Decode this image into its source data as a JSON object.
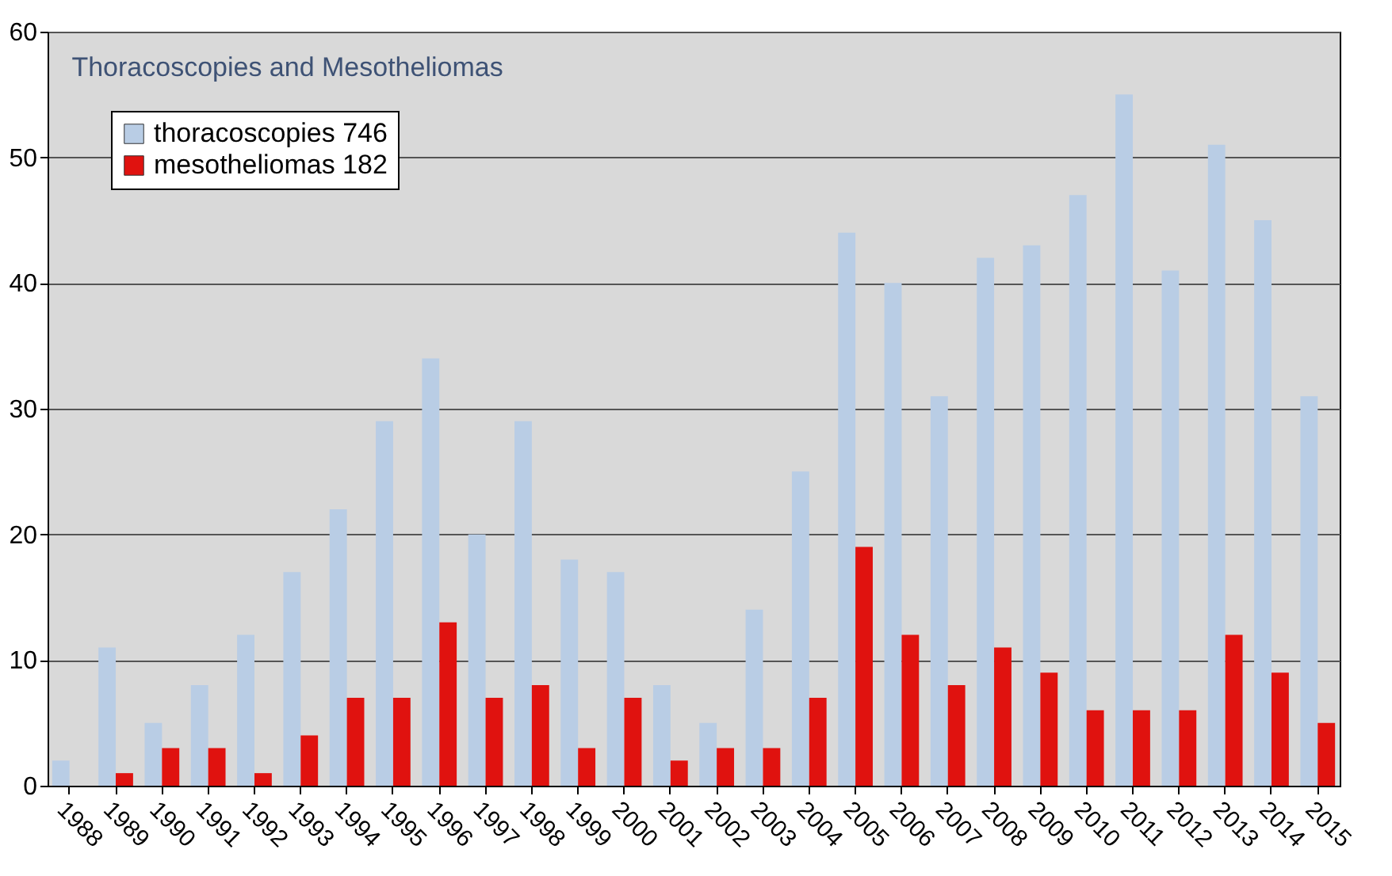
{
  "chart_data": {
    "type": "bar",
    "title": "Thoracoscopies and Mesotheliomas",
    "categories": [
      "1988",
      "1989",
      "1990",
      "1991",
      "1992",
      "1993",
      "1994",
      "1995",
      "1996",
      "1997",
      "1998",
      "1999",
      "2000",
      "2001",
      "2002",
      "2003",
      "2004",
      "2005",
      "2006",
      "2007",
      "2008",
      "2009",
      "2010",
      "2011",
      "2012",
      "2013",
      "2014",
      "2015"
    ],
    "series": [
      {
        "name": "thoracoscopies 746",
        "color": "#b9cde5",
        "values": [
          2,
          11,
          5,
          8,
          12,
          17,
          22,
          29,
          34,
          20,
          29,
          18,
          17,
          8,
          5,
          14,
          25,
          44,
          40,
          31,
          42,
          43,
          47,
          55,
          41,
          51,
          45,
          31
        ]
      },
      {
        "name": "mesotheliomas 182",
        "color": "#e0120f",
        "values": [
          0,
          1,
          3,
          3,
          1,
          4,
          7,
          7,
          13,
          7,
          8,
          3,
          7,
          2,
          3,
          3,
          7,
          19,
          12,
          8,
          11,
          9,
          6,
          6,
          6,
          12,
          9,
          5
        ]
      }
    ],
    "ylim": [
      0,
      60
    ],
    "yticks": [
      0,
      10,
      20,
      30,
      40,
      50,
      60
    ],
    "grid": "y",
    "legend": "top left"
  }
}
